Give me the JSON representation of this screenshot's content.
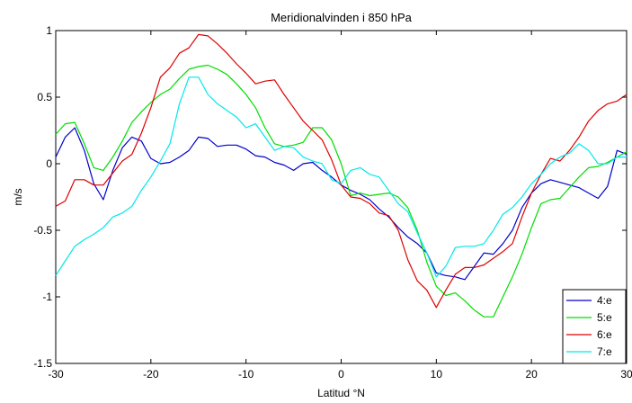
{
  "chart_data": {
    "type": "line",
    "title": "Meridionalvinden i 850 hPa",
    "xlabel": "Latitud °N",
    "ylabel": "m/s",
    "xlim": [
      -30,
      30
    ],
    "ylim": [
      -1.5,
      1
    ],
    "xticks": [
      -30,
      -20,
      -10,
      0,
      10,
      20,
      30
    ],
    "yticks": [
      -1.5,
      -1,
      -0.5,
      0,
      0.5,
      1
    ],
    "xtick_labels": [
      "-30",
      "-20",
      "-10",
      "0",
      "10",
      "20",
      "30"
    ],
    "ytick_labels": [
      "-1.5",
      "-1",
      "-0.5",
      "0",
      "0.5",
      "1"
    ],
    "grid": false,
    "legend_position": "bottom-right",
    "series": [
      {
        "name": "4:e",
        "color": "#0000cc",
        "x": [
          -30,
          -29,
          -28,
          -27,
          -26,
          -25,
          -24,
          -23,
          -22,
          -21,
          -20,
          -19,
          -18,
          -17,
          -16,
          -15,
          -14,
          -13,
          -12,
          -11,
          -10,
          -9,
          -8,
          -7,
          -6,
          -5,
          -4,
          -3,
          -2,
          -1,
          0,
          1,
          2,
          3,
          4,
          5,
          6,
          7,
          8,
          9,
          10,
          11,
          12,
          13,
          14,
          15,
          16,
          17,
          18,
          19,
          20,
          21,
          22,
          23,
          24,
          25,
          26,
          27,
          28,
          29,
          30
        ],
        "y": [
          0.05,
          0.2,
          0.27,
          0.1,
          -0.15,
          -0.27,
          -0.05,
          0.12,
          0.2,
          0.17,
          0.04,
          0.0,
          0.01,
          0.05,
          0.1,
          0.2,
          0.19,
          0.13,
          0.14,
          0.14,
          0.11,
          0.06,
          0.05,
          0.01,
          -0.01,
          -0.05,
          0.0,
          0.01,
          -0.05,
          -0.1,
          -0.16,
          -0.2,
          -0.23,
          -0.27,
          -0.34,
          -0.4,
          -0.48,
          -0.55,
          -0.6,
          -0.67,
          -0.82,
          -0.84,
          -0.85,
          -0.87,
          -0.77,
          -0.67,
          -0.68,
          -0.6,
          -0.5,
          -0.33,
          -0.22,
          -0.15,
          -0.12,
          -0.14,
          -0.16,
          -0.18,
          -0.22,
          -0.26,
          -0.17,
          0.1,
          0.07
        ]
      },
      {
        "name": "5:e",
        "color": "#00dd00",
        "x": [
          -30,
          -29,
          -28,
          -27,
          -26,
          -25,
          -24,
          -23,
          -22,
          -21,
          -20,
          -19,
          -18,
          -17,
          -16,
          -15,
          -14,
          -13,
          -12,
          -11,
          -10,
          -9,
          -8,
          -7,
          -6,
          -5,
          -4,
          -3,
          -2,
          -1,
          0,
          1,
          2,
          3,
          4,
          5,
          6,
          7,
          8,
          9,
          10,
          11,
          12,
          13,
          14,
          15,
          16,
          17,
          18,
          19,
          20,
          21,
          22,
          23,
          24,
          25,
          26,
          27,
          28,
          29,
          30
        ],
        "y": [
          0.22,
          0.3,
          0.31,
          0.15,
          -0.03,
          -0.05,
          0.05,
          0.17,
          0.31,
          0.39,
          0.46,
          0.52,
          0.56,
          0.64,
          0.71,
          0.73,
          0.74,
          0.71,
          0.67,
          0.6,
          0.52,
          0.42,
          0.27,
          0.15,
          0.13,
          0.14,
          0.16,
          0.27,
          0.27,
          0.18,
          0.0,
          -0.24,
          -0.22,
          -0.24,
          -0.23,
          -0.22,
          -0.25,
          -0.33,
          -0.5,
          -0.74,
          -0.92,
          -0.99,
          -0.97,
          -1.03,
          -1.1,
          -1.15,
          -1.15,
          -1.0,
          -0.85,
          -0.68,
          -0.48,
          -0.3,
          -0.27,
          -0.26,
          -0.18,
          -0.1,
          -0.03,
          -0.02,
          0.01,
          0.05,
          0.09
        ]
      },
      {
        "name": "6:e",
        "color": "#dd0000",
        "x": [
          -30,
          -29,
          -28,
          -27,
          -26,
          -25,
          -24,
          -23,
          -22,
          -21,
          -20,
          -19,
          -18,
          -17,
          -16,
          -15,
          -14,
          -13,
          -12,
          -11,
          -10,
          -9,
          -8,
          -7,
          -6,
          -5,
          -4,
          -3,
          -2,
          -1,
          0,
          1,
          2,
          3,
          4,
          5,
          6,
          7,
          8,
          9,
          10,
          11,
          12,
          13,
          14,
          15,
          16,
          17,
          18,
          19,
          20,
          21,
          22,
          23,
          24,
          25,
          26,
          27,
          28,
          29,
          30
        ],
        "y": [
          -0.32,
          -0.28,
          -0.12,
          -0.12,
          -0.16,
          -0.16,
          -0.07,
          0.02,
          0.07,
          0.23,
          0.42,
          0.65,
          0.72,
          0.83,
          0.87,
          0.97,
          0.96,
          0.9,
          0.83,
          0.75,
          0.68,
          0.6,
          0.62,
          0.63,
          0.52,
          0.42,
          0.32,
          0.25,
          0.18,
          0.03,
          -0.16,
          -0.25,
          -0.26,
          -0.3,
          -0.37,
          -0.39,
          -0.5,
          -0.72,
          -0.88,
          -0.95,
          -1.08,
          -0.95,
          -0.83,
          -0.78,
          -0.78,
          -0.76,
          -0.71,
          -0.66,
          -0.6,
          -0.4,
          -0.22,
          -0.08,
          0.04,
          0.02,
          0.1,
          0.2,
          0.32,
          0.4,
          0.45,
          0.47,
          0.52
        ]
      },
      {
        "name": "7:e",
        "color": "#00e8e8",
        "x": [
          -30,
          -29,
          -28,
          -27,
          -26,
          -25,
          -24,
          -23,
          -22,
          -21,
          -20,
          -19,
          -18,
          -17,
          -16,
          -15,
          -14,
          -13,
          -12,
          -11,
          -10,
          -9,
          -8,
          -7,
          -6,
          -5,
          -4,
          -3,
          -2,
          -1,
          0,
          1,
          2,
          3,
          4,
          5,
          6,
          7,
          8,
          9,
          10,
          11,
          12,
          13,
          14,
          15,
          16,
          17,
          18,
          19,
          20,
          21,
          22,
          23,
          24,
          25,
          26,
          27,
          28,
          29,
          30
        ],
        "y": [
          -0.84,
          -0.73,
          -0.62,
          -0.57,
          -0.53,
          -0.48,
          -0.4,
          -0.37,
          -0.32,
          -0.2,
          -0.1,
          0.02,
          0.15,
          0.45,
          0.65,
          0.65,
          0.52,
          0.45,
          0.4,
          0.35,
          0.27,
          0.3,
          0.2,
          0.1,
          0.13,
          0.12,
          0.05,
          0.02,
          0.0,
          -0.12,
          -0.15,
          -0.05,
          -0.03,
          -0.08,
          -0.1,
          -0.2,
          -0.3,
          -0.36,
          -0.52,
          -0.67,
          -0.85,
          -0.77,
          -0.63,
          -0.62,
          -0.62,
          -0.6,
          -0.5,
          -0.38,
          -0.33,
          -0.25,
          -0.15,
          -0.08,
          0.0,
          0.05,
          0.08,
          0.15,
          0.1,
          0.0,
          0.0,
          0.05,
          0.05
        ]
      }
    ]
  }
}
